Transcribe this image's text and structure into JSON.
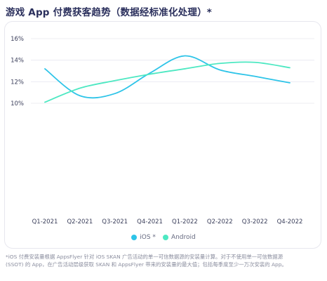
{
  "title": "游戏 App 付费获客趋势（数据经标准化处理）*",
  "chart_data": {
    "type": "line",
    "categories": [
      "Q1-2021",
      "Q2-2021",
      "Q3-2021",
      "Q4-2021",
      "Q1-2022",
      "Q2-2022",
      "Q3-2022",
      "Q4-2022"
    ],
    "y_ticks": [
      "16%",
      "14%",
      "12%",
      "10%"
    ],
    "ylim": [
      10,
      16
    ],
    "y_tick_values": [
      16,
      14,
      12,
      10
    ],
    "grid": true,
    "legend_position": "bottom-center",
    "series": [
      {
        "name": "iOS *",
        "color": "#2ec4e8",
        "values": [
          13.2,
          10.7,
          10.9,
          12.8,
          14.4,
          13.1,
          12.5,
          11.9
        ]
      },
      {
        "name": "Android",
        "color": "#4de8c2",
        "values": [
          10.1,
          11.4,
          12.1,
          12.7,
          13.2,
          13.7,
          13.8,
          13.3
        ]
      }
    ]
  },
  "footnote": [
    "*iOS 付费安装量根据 AppsFlyer 针对 iOS SKAN 广告活动的单一可信数据源的安装量计算。对于不使用单一可信数据源",
    "(SSOT) 的 App，在广告活动层级获取 SKAN 和 AppsFlyer 带来的安装量的最大值；包括每季度至少一万次安装的 App。"
  ]
}
